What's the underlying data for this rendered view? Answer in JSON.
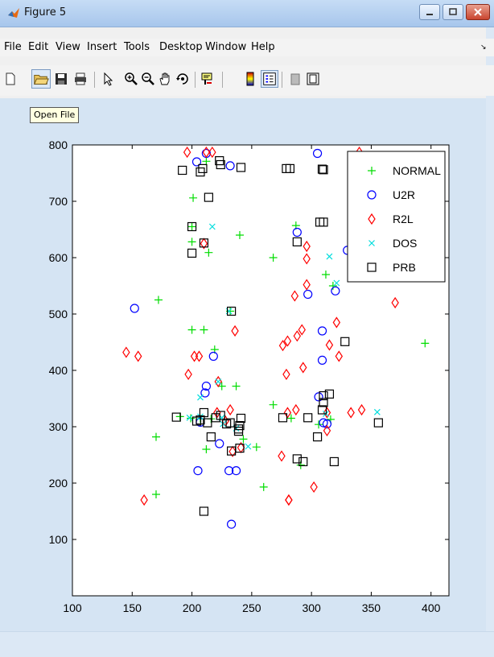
{
  "window": {
    "title": "Figure 5"
  },
  "menu": [
    "File",
    "Edit",
    "View",
    "Insert",
    "Tools",
    "Desktop",
    "Window",
    "Help"
  ],
  "toolbar": {
    "buttons": [
      "new-figure",
      "open-file",
      "save-figure",
      "print-figure",
      "edit-plot",
      "zoom-in",
      "zoom-out",
      "pan",
      "rotate-3d",
      "data-cursor",
      "insert-colorbar",
      "insert-legend",
      "hide-plot-tools",
      "show-plot-tools"
    ],
    "tooltip": "Open File"
  },
  "chart_data": {
    "type": "scatter",
    "xlim": [
      100,
      415
    ],
    "ylim": [
      0,
      800
    ],
    "xticks": [
      100,
      150,
      200,
      250,
      300,
      350,
      400
    ],
    "yticks": [
      100,
      200,
      300,
      400,
      500,
      600,
      700,
      800
    ],
    "grid": false,
    "legend_position": "top-right",
    "series": [
      {
        "name": "NORMAL",
        "marker": "plus",
        "color": "#00dd00",
        "points": [
          [
            201,
            706
          ],
          [
            212,
            771
          ],
          [
            200,
            655
          ],
          [
            200,
            628
          ],
          [
            214,
            609
          ],
          [
            240,
            640
          ],
          [
            172,
            525
          ],
          [
            200,
            472
          ],
          [
            210,
            472
          ],
          [
            219,
            437
          ],
          [
            232,
            505
          ],
          [
            237,
            372
          ],
          [
            225,
            372
          ],
          [
            190,
            318
          ],
          [
            199,
            315
          ],
          [
            207,
            314
          ],
          [
            216,
            314
          ],
          [
            212,
            260
          ],
          [
            170,
            282
          ],
          [
            243,
            278
          ],
          [
            254,
            264
          ],
          [
            268,
            339
          ],
          [
            283,
            315
          ],
          [
            291,
            232
          ],
          [
            260,
            193
          ],
          [
            170,
            180
          ],
          [
            268,
            600
          ],
          [
            287,
            657
          ],
          [
            312,
            570
          ],
          [
            318,
            550
          ],
          [
            395,
            448
          ],
          [
            316,
            313
          ],
          [
            306,
            304
          ]
        ]
      },
      {
        "name": "U2R",
        "marker": "circle",
        "color": "#0000ff",
        "points": [
          [
            204,
            770
          ],
          [
            232,
            763
          ],
          [
            212,
            785
          ],
          [
            305,
            785
          ],
          [
            152,
            510
          ],
          [
            207,
            308
          ],
          [
            205,
            222
          ],
          [
            231,
            222
          ],
          [
            237,
            222
          ],
          [
            233,
            127
          ],
          [
            223,
            270
          ],
          [
            212,
            372
          ],
          [
            211,
            360
          ],
          [
            218,
            425
          ],
          [
            288,
            645
          ],
          [
            297,
            535
          ],
          [
            309,
            470
          ],
          [
            309,
            418
          ],
          [
            320,
            541
          ],
          [
            306,
            353
          ],
          [
            310,
            307
          ],
          [
            313,
            305
          ],
          [
            330,
            613
          ]
        ]
      },
      {
        "name": "R2L",
        "marker": "diamond",
        "color": "#ff0000",
        "points": [
          [
            196,
            787
          ],
          [
            212,
            787
          ],
          [
            217,
            787
          ],
          [
            210,
            625
          ],
          [
            145,
            432
          ],
          [
            155,
            425
          ],
          [
            197,
            393
          ],
          [
            202,
            425
          ],
          [
            206,
            425
          ],
          [
            236,
            470
          ],
          [
            222,
            380
          ],
          [
            228,
            310
          ],
          [
            232,
            330
          ],
          [
            234,
            256
          ],
          [
            241,
            263
          ],
          [
            221,
            325
          ],
          [
            160,
            170
          ],
          [
            276,
            444
          ],
          [
            280,
            452
          ],
          [
            288,
            461
          ],
          [
            280,
            325
          ],
          [
            287,
            330
          ],
          [
            292,
            472
          ],
          [
            296,
            552
          ],
          [
            296,
            598
          ],
          [
            296,
            620
          ],
          [
            286,
            532
          ],
          [
            293,
            405
          ],
          [
            279,
            393
          ],
          [
            315,
            445
          ],
          [
            321,
            485
          ],
          [
            323,
            425
          ],
          [
            313,
            293
          ],
          [
            313,
            325
          ],
          [
            333,
            325
          ],
          [
            342,
            330
          ],
          [
            340,
            787
          ],
          [
            370,
            520
          ],
          [
            302,
            193
          ],
          [
            281,
            170
          ],
          [
            281,
            170
          ],
          [
            275,
            248
          ]
        ]
      },
      {
        "name": "DOS",
        "marker": "x",
        "color": "#00dddd",
        "points": [
          [
            217,
            655
          ],
          [
            315,
            602
          ],
          [
            321,
            555
          ],
          [
            207,
            352
          ],
          [
            222,
            380
          ],
          [
            225,
            316
          ],
          [
            198,
            316
          ],
          [
            207,
            318
          ],
          [
            312,
            323
          ],
          [
            355,
            326
          ],
          [
            237,
            297
          ],
          [
            247,
            265
          ],
          [
            226,
            305
          ],
          [
            231,
            505
          ]
        ]
      },
      {
        "name": "PRB",
        "marker": "square",
        "color": "#000000",
        "points": [
          [
            192,
            755
          ],
          [
            207,
            752
          ],
          [
            209,
            758
          ],
          [
            214,
            707
          ],
          [
            223,
            772
          ],
          [
            224,
            765
          ],
          [
            241,
            760
          ],
          [
            279,
            758
          ],
          [
            282,
            758
          ],
          [
            310,
            756
          ],
          [
            309,
            757
          ],
          [
            307,
            663
          ],
          [
            310,
            663
          ],
          [
            288,
            628
          ],
          [
            200,
            655
          ],
          [
            200,
            608
          ],
          [
            210,
            626
          ],
          [
            210,
            150
          ],
          [
            187,
            317
          ],
          [
            204,
            310
          ],
          [
            207,
            312
          ],
          [
            210,
            325
          ],
          [
            213,
            307
          ],
          [
            216,
            282
          ],
          [
            220,
            316
          ],
          [
            224,
            320
          ],
          [
            229,
            305
          ],
          [
            232,
            307
          ],
          [
            239,
            296
          ],
          [
            239,
            292
          ],
          [
            240,
            302
          ],
          [
            241,
            315
          ],
          [
            240,
            262
          ],
          [
            233,
            505
          ],
          [
            233,
            257
          ],
          [
            276,
            316
          ],
          [
            297,
            316
          ],
          [
            288,
            243
          ],
          [
            293,
            238
          ],
          [
            305,
            282
          ],
          [
            310,
            343
          ],
          [
            310,
            355
          ],
          [
            315,
            358
          ],
          [
            309,
            330
          ],
          [
            328,
            451
          ],
          [
            319,
            238
          ],
          [
            356,
            307
          ]
        ]
      }
    ]
  },
  "colors": {
    "titlebar": "#b9d1ef",
    "figure_bg": "#d5e4f3",
    "axes_bg": "#ffffff"
  }
}
